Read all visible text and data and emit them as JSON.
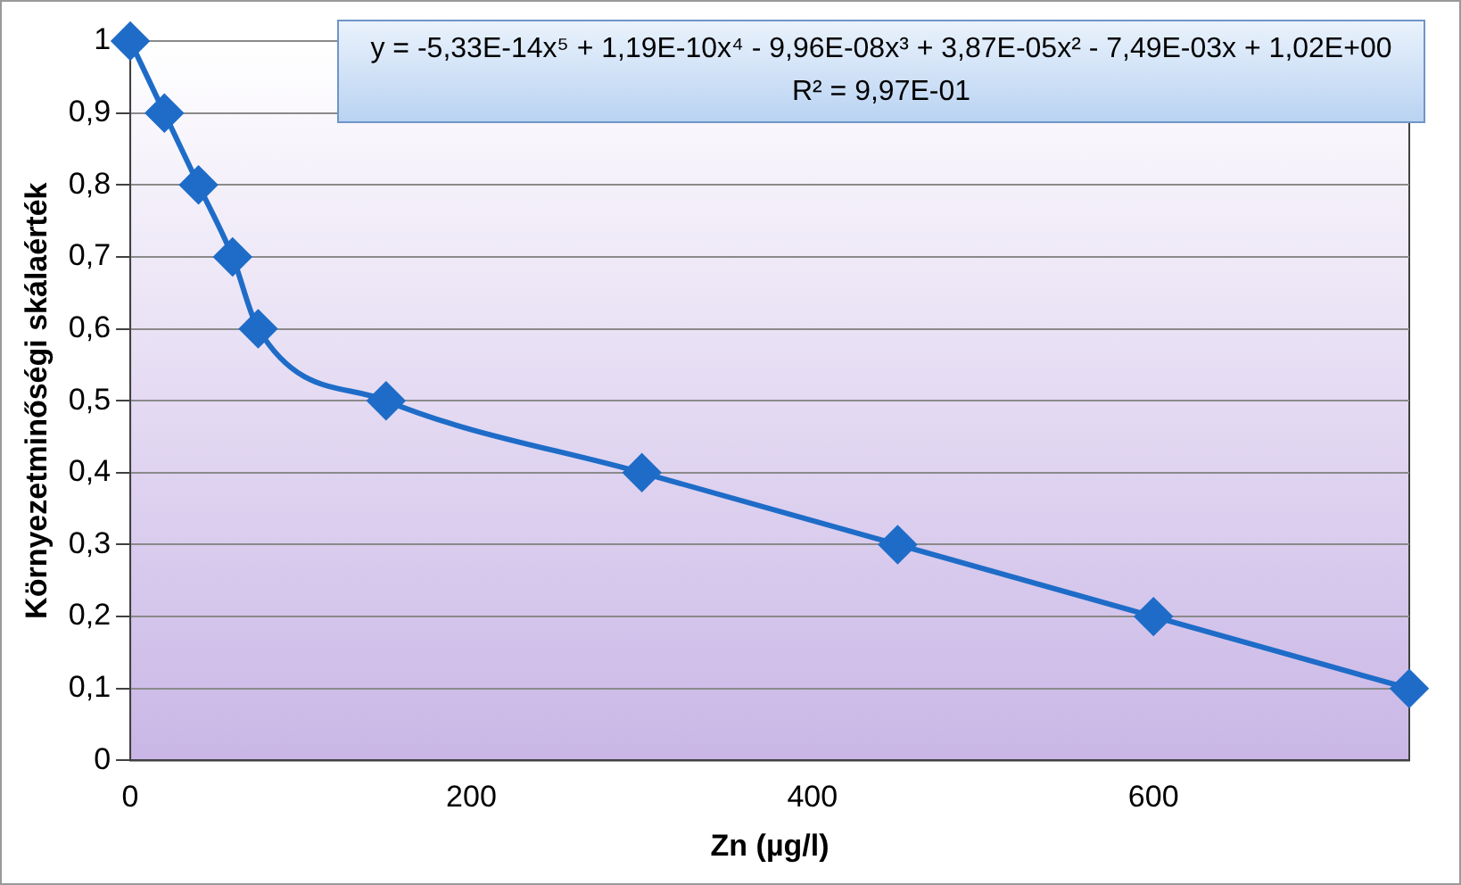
{
  "chart_data": {
    "type": "line",
    "xlabel": "Zn (µg/l)",
    "ylabel": "Környezetminőségi skálaérték",
    "x": [
      0,
      20,
      40,
      60,
      75,
      150,
      300,
      450,
      600,
      750
    ],
    "series": [
      {
        "color": "#1e6cc8",
        "values": [
          1,
          0.9,
          0.8,
          0.7,
          0.6,
          0.5,
          0.4,
          0.3,
          0.2,
          0.1
        ]
      }
    ],
    "xlim": [
      0,
      750
    ],
    "xticks": [
      0,
      200,
      400,
      600
    ],
    "ylim": [
      0,
      1
    ],
    "yticks": [
      {
        "value": 0,
        "label": "0"
      },
      {
        "value": 0.1,
        "label": "0,1"
      },
      {
        "value": 0.2,
        "label": "0,2"
      },
      {
        "value": 0.3,
        "label": "0,3"
      },
      {
        "value": 0.4,
        "label": "0,4"
      },
      {
        "value": 0.5,
        "label": "0,5"
      },
      {
        "value": 0.6,
        "label": "0,6"
      },
      {
        "value": 0.7,
        "label": "0,7"
      },
      {
        "value": 0.8,
        "label": "0,8"
      },
      {
        "value": 0.9,
        "label": "0,9"
      },
      {
        "value": 1,
        "label": "1"
      }
    ],
    "grid": "y",
    "legend": false,
    "marker": "diamond",
    "line_style": "solid",
    "annotations": [
      "y = -5,33E-14x⁵ + 1,19E-10x⁴ - 9,96E-08x³ + 3,87E-05x² - 7,49E-03x + 1,02E+00",
      "R² = 9,97E-01"
    ]
  }
}
